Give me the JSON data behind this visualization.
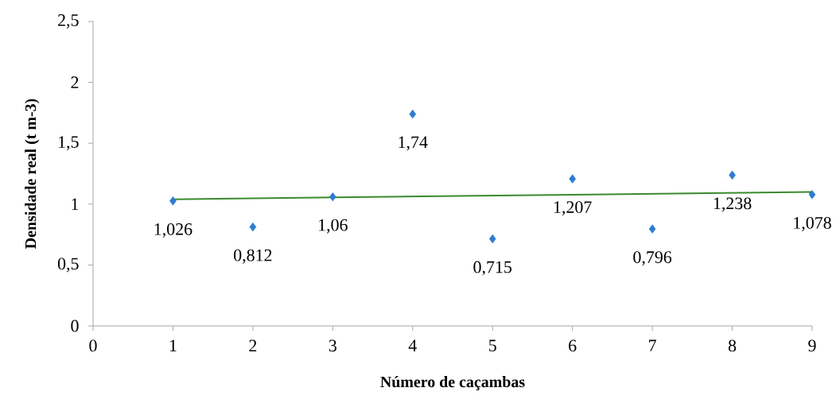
{
  "chart_data": {
    "type": "scatter",
    "xlabel": "Número de caçambas",
    "ylabel": "Densidade real (t m-3)",
    "x": [
      1,
      2,
      3,
      4,
      5,
      6,
      7,
      8,
      9
    ],
    "series": [
      {
        "color": "#2e7bd0",
        "marker": "diamond",
        "values": [
          1.026,
          0.812,
          1.06,
          1.74,
          0.715,
          1.207,
          0.796,
          1.238,
          1.078
        ],
        "value_labels": [
          "1,026",
          "0,812",
          "1,06",
          "1,74",
          "0,715",
          "1,207",
          "0,796",
          "1,238",
          "1,078"
        ]
      },
      {
        "type": "line",
        "color": "#3a8a2e",
        "x": [
          1,
          9
        ],
        "values": [
          1.04,
          1.1
        ]
      }
    ],
    "xlim": [
      0,
      9
    ],
    "xticks": [
      0,
      1,
      2,
      3,
      4,
      5,
      6,
      7,
      8,
      9
    ],
    "ylim": [
      0,
      2.5
    ],
    "yticks": [
      0,
      {
        "value": 0.5,
        "label": "0,5"
      },
      1,
      {
        "value": 1.5,
        "label": "1,5"
      },
      2,
      {
        "value": 2.5,
        "label": "2,5"
      }
    ],
    "grid": false
  }
}
